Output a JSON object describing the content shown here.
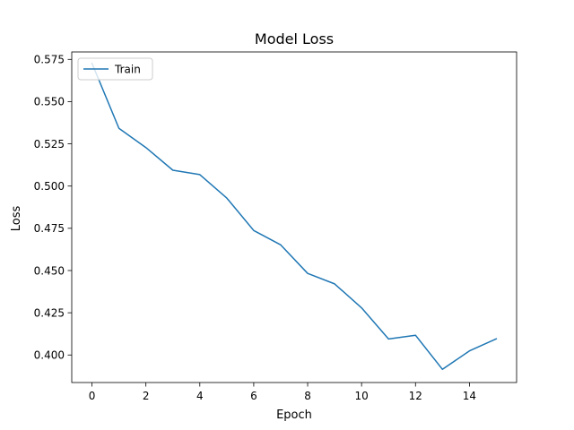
{
  "chart_data": {
    "type": "line",
    "title": "Model Loss",
    "xlabel": "Epoch",
    "ylabel": "Loss",
    "xlim": [
      -0.75,
      15.75
    ],
    "ylim": [
      0.3837,
      0.5794
    ],
    "xticks": [
      0,
      2,
      4,
      6,
      8,
      10,
      12,
      14
    ],
    "yticks": [
      0.4,
      0.425,
      0.45,
      0.475,
      0.5,
      0.525,
      0.55,
      0.575
    ],
    "xtick_labels": [
      "0",
      "2",
      "4",
      "6",
      "8",
      "10",
      "12",
      "14"
    ],
    "ytick_labels": [
      "0.400",
      "0.425",
      "0.450",
      "0.475",
      "0.500",
      "0.525",
      "0.550",
      "0.575"
    ],
    "grid": false,
    "legend_position": "upper left",
    "series": [
      {
        "name": "Train",
        "color": "#1f77b4",
        "x": [
          0,
          1,
          2,
          3,
          4,
          5,
          6,
          7,
          8,
          9,
          10,
          11,
          12,
          13,
          14,
          15
        ],
        "y": [
          0.5727,
          0.5342,
          0.5228,
          0.5094,
          0.5068,
          0.4929,
          0.4737,
          0.4652,
          0.4483,
          0.4421,
          0.4279,
          0.4095,
          0.4117,
          0.3915,
          0.4024,
          0.4096
        ]
      }
    ]
  }
}
